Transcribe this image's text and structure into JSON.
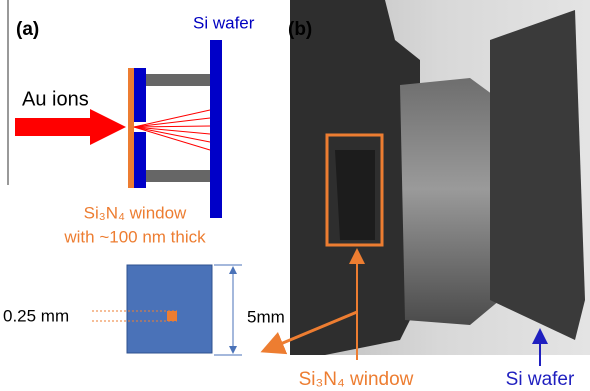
{
  "panel_a": {
    "label": "(a)",
    "wafer_label": "Si  wafer",
    "ion_label": "Au ions",
    "window_label": "Si₃N₄ window",
    "window_note": "with ~100 nm thick",
    "hole_size": "0.25 mm",
    "chip_size": "5mm"
  },
  "panel_b": {
    "label": "(b)",
    "window_label": "Si₃N₄ window",
    "wafer_label": "Si wafer"
  }
}
